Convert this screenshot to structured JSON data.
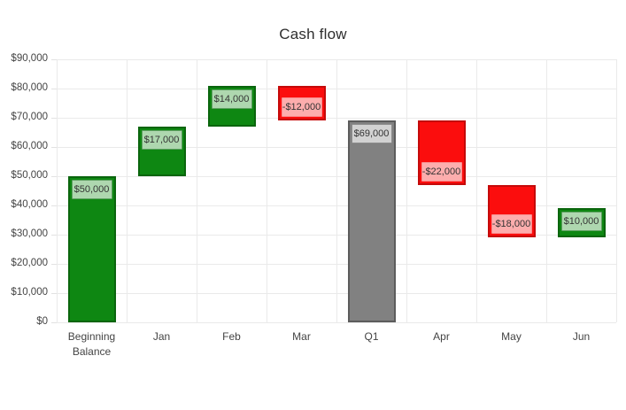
{
  "chart_data": {
    "type": "bar",
    "subtype": "waterfall",
    "title": "Cash flow",
    "legend_position": "none",
    "grid": true,
    "categories": [
      "Beginning Balance",
      "Jan",
      "Feb",
      "Mar",
      "Q1",
      "Apr",
      "May",
      "Jun"
    ],
    "bars": [
      {
        "category": "Beginning Balance",
        "value": 50000,
        "label": "$50,000",
        "kind": "rising",
        "from": 0,
        "to": 50000
      },
      {
        "category": "Jan",
        "value": 17000,
        "label": "$17,000",
        "kind": "rising",
        "from": 50000,
        "to": 67000
      },
      {
        "category": "Feb",
        "value": 14000,
        "label": "$14,000",
        "kind": "rising",
        "from": 67000,
        "to": 81000
      },
      {
        "category": "Mar",
        "value": -12000,
        "label": "-$12,000",
        "kind": "falling",
        "from": 81000,
        "to": 69000
      },
      {
        "category": "Q1",
        "value": 69000,
        "label": "$69,000",
        "kind": "total",
        "from": 0,
        "to": 69000
      },
      {
        "category": "Apr",
        "value": -22000,
        "label": "-$22,000",
        "kind": "falling",
        "from": 69000,
        "to": 47000
      },
      {
        "category": "May",
        "value": -18000,
        "label": "-$18,000",
        "kind": "falling",
        "from": 47000,
        "to": 29000
      },
      {
        "category": "Jun",
        "value": 10000,
        "label": "$10,000",
        "kind": "rising",
        "from": 29000,
        "to": 39000
      }
    ],
    "y_axis": {
      "min": 0,
      "max": 90000,
      "step": 10000,
      "tick_labels": [
        "$0",
        "$10,000",
        "$20,000",
        "$30,000",
        "$40,000",
        "$50,000",
        "$60,000",
        "$70,000",
        "$80,000",
        "$90,000"
      ]
    },
    "colors": {
      "rising": {
        "fill": "#0e8712",
        "stroke": "#0a650d",
        "label_bg": "#aed7af",
        "label_border": "#5d9f60"
      },
      "falling": {
        "fill": "#fb0d0d",
        "stroke": "#c50a0a",
        "label_bg": "#fdadad",
        "label_border": "#f98c8c"
      },
      "total": {
        "fill": "#818181",
        "stroke": "#5c5c5c",
        "label_bg": "#d2d2d2",
        "label_border": "#8c8c8c"
      },
      "grid": "#eaeaea",
      "axis_text": "#444444",
      "bar_label_text": "#333333",
      "title_text": "#2e2e2e",
      "background": "#ffffff"
    }
  }
}
